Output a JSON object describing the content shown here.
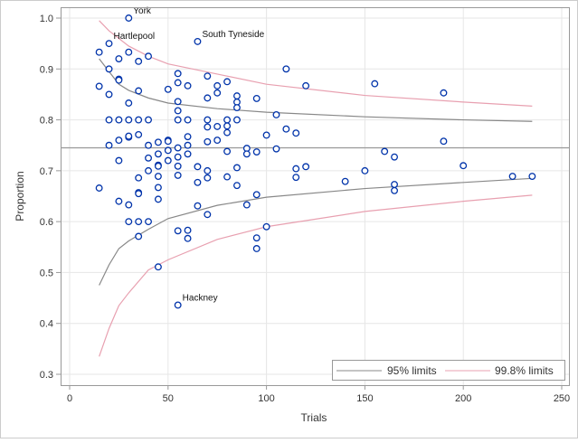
{
  "chart_data": {
    "type": "scatter",
    "title": "",
    "xlabel": "Trials",
    "ylabel": "Proportion",
    "xlim": [
      0,
      250
    ],
    "ylim": [
      0.3,
      1.0
    ],
    "xticks": [
      0,
      50,
      100,
      150,
      200,
      250
    ],
    "yticks": [
      0.3,
      0.4,
      0.5,
      0.6,
      0.7,
      0.8,
      0.9,
      1.0
    ],
    "grid": true,
    "legend_position": "bottom-right",
    "mean": 0.745,
    "colors": {
      "points": "#0033aa",
      "limit95": "#888888",
      "limit998": "#e8a0b0",
      "mean": "#999999",
      "grid": "#e6e6e6"
    },
    "points": [
      [
        15,
        0.933
      ],
      [
        15,
        0.866
      ],
      [
        15,
        0.666
      ],
      [
        20,
        0.95
      ],
      [
        20,
        0.9
      ],
      [
        20,
        0.85
      ],
      [
        20,
        0.8
      ],
      [
        20,
        0.75
      ],
      [
        25,
        0.92
      ],
      [
        25,
        0.88
      ],
      [
        25,
        0.878
      ],
      [
        25,
        0.8
      ],
      [
        25,
        0.76
      ],
      [
        25,
        0.72
      ],
      [
        25,
        0.64
      ],
      [
        30,
        1.0
      ],
      [
        30,
        0.933
      ],
      [
        30,
        0.8
      ],
      [
        30,
        0.833
      ],
      [
        30,
        0.766
      ],
      [
        30,
        0.768
      ],
      [
        30,
        0.6
      ],
      [
        30,
        0.633
      ],
      [
        35,
        0.915
      ],
      [
        35,
        0.8
      ],
      [
        35,
        0.857
      ],
      [
        35,
        0.771
      ],
      [
        35,
        0.686
      ],
      [
        35,
        0.657
      ],
      [
        35,
        0.655
      ],
      [
        35,
        0.6
      ],
      [
        35,
        0.571
      ],
      [
        40,
        0.925
      ],
      [
        40,
        0.8
      ],
      [
        40,
        0.75
      ],
      [
        40,
        0.725
      ],
      [
        40,
        0.7
      ],
      [
        40,
        0.6
      ],
      [
        45,
        0.756
      ],
      [
        45,
        0.733
      ],
      [
        45,
        0.711
      ],
      [
        45,
        0.709
      ],
      [
        45,
        0.689
      ],
      [
        45,
        0.667
      ],
      [
        45,
        0.644
      ],
      [
        45,
        0.511
      ],
      [
        50,
        0.86
      ],
      [
        50,
        0.76
      ],
      [
        50,
        0.758
      ],
      [
        50,
        0.72
      ],
      [
        50,
        0.74
      ],
      [
        55,
        0.891
      ],
      [
        55,
        0.873
      ],
      [
        55,
        0.836
      ],
      [
        55,
        0.818
      ],
      [
        55,
        0.8
      ],
      [
        55,
        0.745
      ],
      [
        55,
        0.727
      ],
      [
        55,
        0.709
      ],
      [
        55,
        0.691
      ],
      [
        55,
        0.582
      ],
      [
        55,
        0.436
      ],
      [
        60,
        0.867
      ],
      [
        60,
        0.8
      ],
      [
        60,
        0.767
      ],
      [
        60,
        0.75
      ],
      [
        60,
        0.733
      ],
      [
        60,
        0.583
      ],
      [
        60,
        0.567
      ],
      [
        65,
        0.954
      ],
      [
        65,
        0.708
      ],
      [
        65,
        0.677
      ],
      [
        65,
        0.631
      ],
      [
        70,
        0.886
      ],
      [
        70,
        0.843
      ],
      [
        70,
        0.8
      ],
      [
        70,
        0.786
      ],
      [
        70,
        0.757
      ],
      [
        70,
        0.7
      ],
      [
        70,
        0.686
      ],
      [
        70,
        0.614
      ],
      [
        75,
        0.867
      ],
      [
        75,
        0.853
      ],
      [
        75,
        0.787
      ],
      [
        75,
        0.76
      ],
      [
        80,
        0.875
      ],
      [
        80,
        0.8
      ],
      [
        80,
        0.788
      ],
      [
        80,
        0.775
      ],
      [
        80,
        0.738
      ],
      [
        80,
        0.688
      ],
      [
        85,
        0.847
      ],
      [
        85,
        0.835
      ],
      [
        85,
        0.824
      ],
      [
        85,
        0.8
      ],
      [
        85,
        0.706
      ],
      [
        85,
        0.671
      ],
      [
        90,
        0.744
      ],
      [
        90,
        0.733
      ],
      [
        90,
        0.633
      ],
      [
        95,
        0.842
      ],
      [
        95,
        0.737
      ],
      [
        95,
        0.653
      ],
      [
        95,
        0.568
      ],
      [
        95,
        0.547
      ],
      [
        100,
        0.77
      ],
      [
        100,
        0.59
      ],
      [
        105,
        0.81
      ],
      [
        105,
        0.743
      ],
      [
        110,
        0.9
      ],
      [
        110,
        0.782
      ],
      [
        115,
        0.774
      ],
      [
        115,
        0.704
      ],
      [
        115,
        0.687
      ],
      [
        120,
        0.867
      ],
      [
        120,
        0.708
      ],
      [
        140,
        0.679
      ],
      [
        150,
        0.7
      ],
      [
        155,
        0.871
      ],
      [
        160,
        0.738
      ],
      [
        165,
        0.727
      ],
      [
        165,
        0.673
      ],
      [
        165,
        0.661
      ],
      [
        190,
        0.853
      ],
      [
        190,
        0.758
      ],
      [
        200,
        0.71
      ],
      [
        225,
        0.689
      ],
      [
        235,
        0.689
      ]
    ],
    "labels": [
      {
        "text": "York",
        "x": 30,
        "y": 1.0
      },
      {
        "text": "Hartlepool",
        "x": 20,
        "y": 0.95
      },
      {
        "text": "South Tyneside",
        "x": 65,
        "y": 0.954
      },
      {
        "text": "Hackney",
        "x": 55,
        "y": 0.436
      }
    ],
    "series": [
      {
        "name": "95% limits",
        "n": [
          15,
          20,
          25,
          30,
          40,
          50,
          75,
          100,
          150,
          200,
          235
        ],
        "upper": [
          0.92,
          0.895,
          0.87,
          0.858,
          0.843,
          0.833,
          0.822,
          0.815,
          0.806,
          0.8,
          0.797
        ],
        "lower": [
          0.475,
          0.515,
          0.547,
          0.562,
          0.585,
          0.606,
          0.632,
          0.648,
          0.665,
          0.677,
          0.685
        ]
      },
      {
        "name": "99.8% limits",
        "n": [
          15,
          20,
          25,
          30,
          40,
          50,
          75,
          100,
          150,
          200,
          235
        ],
        "upper": [
          0.995,
          0.975,
          0.96,
          0.945,
          0.925,
          0.91,
          0.89,
          0.87,
          0.848,
          0.835,
          0.827
        ],
        "lower": [
          0.335,
          0.39,
          0.435,
          0.46,
          0.505,
          0.525,
          0.565,
          0.59,
          0.62,
          0.64,
          0.652
        ]
      }
    ]
  }
}
